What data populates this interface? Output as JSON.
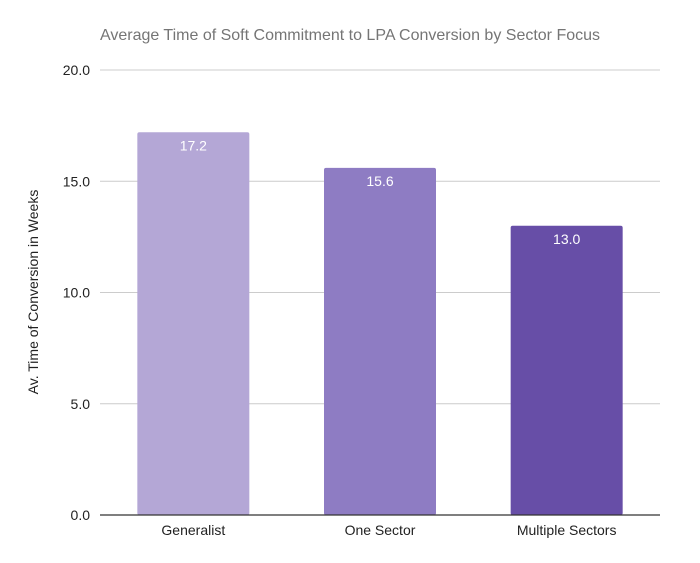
{
  "chart_data": {
    "type": "bar",
    "title": "Average Time of Soft Commitment to LPA Conversion by Sector Focus",
    "xlabel": "",
    "ylabel": "Av. Time of Conversion in Weeks",
    "categories": [
      "Generalist",
      "One Sector",
      "Multiple Sectors"
    ],
    "values": [
      17.2,
      15.6,
      13.0
    ],
    "data_labels": [
      "17.2",
      "15.6",
      "13.0"
    ],
    "ylim": [
      0,
      20
    ],
    "yticks": [
      0,
      5,
      10,
      15,
      20
    ],
    "ytick_labels": [
      "0.0",
      "5.0",
      "10.0",
      "15.0",
      "20.0"
    ],
    "bar_colors": [
      "#b4a7d6",
      "#8e7cc3",
      "#674ea7"
    ],
    "grid": true,
    "legend": "none"
  }
}
